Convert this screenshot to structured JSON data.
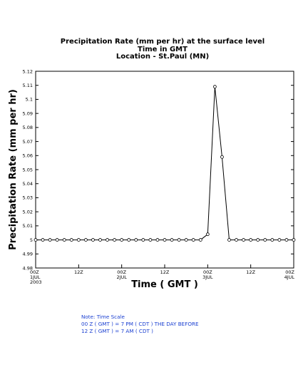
{
  "chart_data": {
    "type": "line",
    "title_lines": [
      "Precipitation Rate (mm per hr) at the surface level",
      "Time in GMT",
      "Location - St.Paul (MN)"
    ],
    "xlabel": "Time ( GMT )",
    "ylabel": "Precipitation Rate (mm per hr)",
    "ylim": [
      4.98,
      5.12
    ],
    "yticks": [
      4.98,
      4.99,
      5,
      5.01,
      5.02,
      5.03,
      5.04,
      5.05,
      5.06,
      5.07,
      5.08,
      5.09,
      5.1,
      5.11,
      5.12
    ],
    "ytick_labels": [
      "4.98",
      "4.99",
      "5",
      "5.01",
      "5.02",
      "5.03",
      "5.04",
      "5.05",
      "5.06",
      "5.07",
      "5.08",
      "5.09",
      "5.1",
      "5.11",
      "5.12"
    ],
    "xlim": [
      0,
      72
    ],
    "xticks": [
      {
        "x": 0,
        "lines": [
          "00Z",
          "1JUL",
          "2003"
        ]
      },
      {
        "x": 12,
        "lines": [
          "12Z"
        ]
      },
      {
        "x": 24,
        "lines": [
          "00Z",
          "2JUL"
        ]
      },
      {
        "x": 36,
        "lines": [
          "12Z"
        ]
      },
      {
        "x": 48,
        "lines": [
          "00Z",
          "3JUL"
        ]
      },
      {
        "x": 60,
        "lines": [
          "12Z"
        ]
      },
      {
        "x": 72,
        "lines": [
          "00Z",
          "4JUL"
        ]
      }
    ],
    "series": [
      {
        "x": [
          0,
          2,
          4,
          6,
          8,
          10,
          12,
          14,
          16,
          18,
          20,
          22,
          24,
          26,
          28,
          30,
          32,
          34,
          36,
          38,
          40,
          42,
          44,
          46,
          48,
          50,
          52,
          54,
          56,
          58,
          60,
          62,
          64,
          66,
          68,
          70,
          72
        ],
        "values": [
          5,
          5,
          5,
          5,
          5,
          5,
          5,
          5,
          5,
          5,
          5,
          5,
          5,
          5,
          5,
          5,
          5,
          5,
          5,
          5,
          5,
          5,
          5,
          5,
          5.004,
          5.109,
          5.059,
          5,
          5,
          5,
          5,
          5,
          5,
          5,
          5,
          5,
          5
        ]
      }
    ],
    "grid": false,
    "marker": "open-circle"
  },
  "note": {
    "lines": [
      "Note: Time Scale",
      "00 Z ( GMT ) = 7 PM ( CDT ) THE DAY BEFORE",
      "12 Z ( GMT ) = 7 AM ( CDT )"
    ],
    "color": "#1a3fd1"
  }
}
